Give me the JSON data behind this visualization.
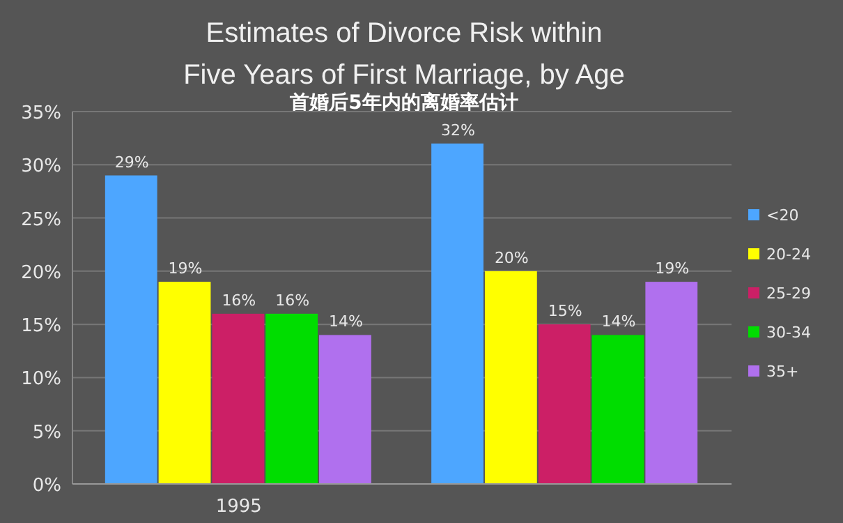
{
  "chart_data": {
    "type": "bar",
    "title": "Estimates of Divorce Risk within\nFive Years of First Marriage, by Age",
    "subtitle": "首婚后5年内的离婚率估计",
    "categories": [
      "1995",
      null
    ],
    "series": [
      {
        "name": "<20",
        "color": "#4da6ff",
        "values": [
          29,
          32
        ],
        "value_labels": [
          "29%",
          "32%"
        ]
      },
      {
        "name": "20-24",
        "color": "#ffff00",
        "values": [
          19,
          20
        ],
        "value_labels": [
          "19%",
          "20%"
        ]
      },
      {
        "name": "25-29",
        "color": "#cc1f66",
        "values": [
          16,
          15
        ],
        "value_labels": [
          "16%",
          "15%"
        ]
      },
      {
        "name": "30-34",
        "color": "#00dd00",
        "values": [
          16,
          14
        ],
        "value_labels": [
          "16%",
          "14%"
        ]
      },
      {
        "name": "35+",
        "color": "#b070ee",
        "values": [
          14,
          19
        ],
        "value_labels": [
          "14%",
          "19%"
        ]
      }
    ],
    "ylim": [
      0,
      35
    ],
    "yticks": [
      {
        "value": 0,
        "label": "0%"
      },
      {
        "value": 5,
        "label": "5%"
      },
      {
        "value": 10,
        "label": "10%"
      },
      {
        "value": 15,
        "label": "15%"
      },
      {
        "value": 20,
        "label": "20%"
      },
      {
        "value": 25,
        "label": "25%"
      },
      {
        "value": 30,
        "label": "30%"
      },
      {
        "value": 35,
        "label": "35%"
      }
    ],
    "grid": "y",
    "legend": "right"
  }
}
